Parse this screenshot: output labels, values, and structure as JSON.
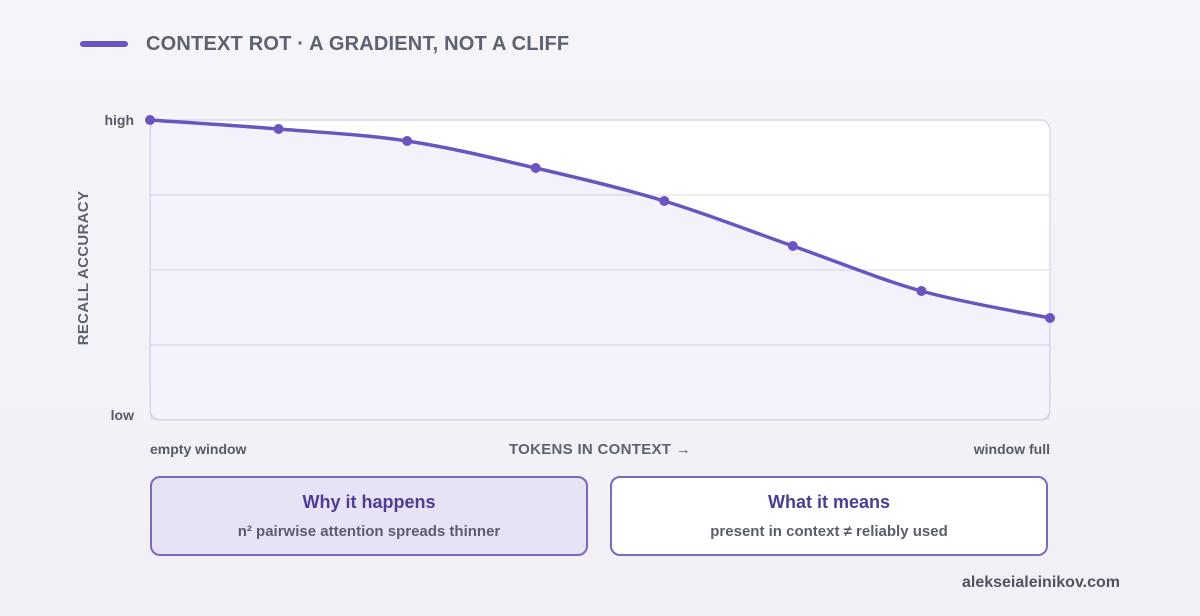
{
  "colors": {
    "series": "#6a55c0",
    "accent_text": "#4c3d93",
    "plot_border": "#dcd9e8",
    "grid": "#e4e2ee"
  },
  "chart_data": {
    "type": "line",
    "title": "CONTEXT ROT · A GRADIENT, NOT A CLIFF",
    "xlabel": "TOKENS IN CONTEXT →",
    "ylabel": "RECALL ACCURACY",
    "x_tick_labels": [
      "empty window",
      "window full"
    ],
    "y_tick_labels": [
      "low",
      "high"
    ],
    "ylim": [
      0,
      1
    ],
    "grid": true,
    "legend_position": "top-left",
    "series": [
      {
        "x": [
          0,
          1,
          2,
          3,
          4,
          5,
          6,
          7
        ],
        "values": [
          1.0,
          0.97,
          0.93,
          0.84,
          0.73,
          0.58,
          0.43,
          0.34
        ]
      }
    ]
  },
  "cards": [
    {
      "title": "Why it happens",
      "body": "n² pairwise attention spreads thinner"
    },
    {
      "title": "What it means",
      "body": "present in context ≠ reliably used"
    }
  ],
  "footer": "alekseialeinikov.com"
}
